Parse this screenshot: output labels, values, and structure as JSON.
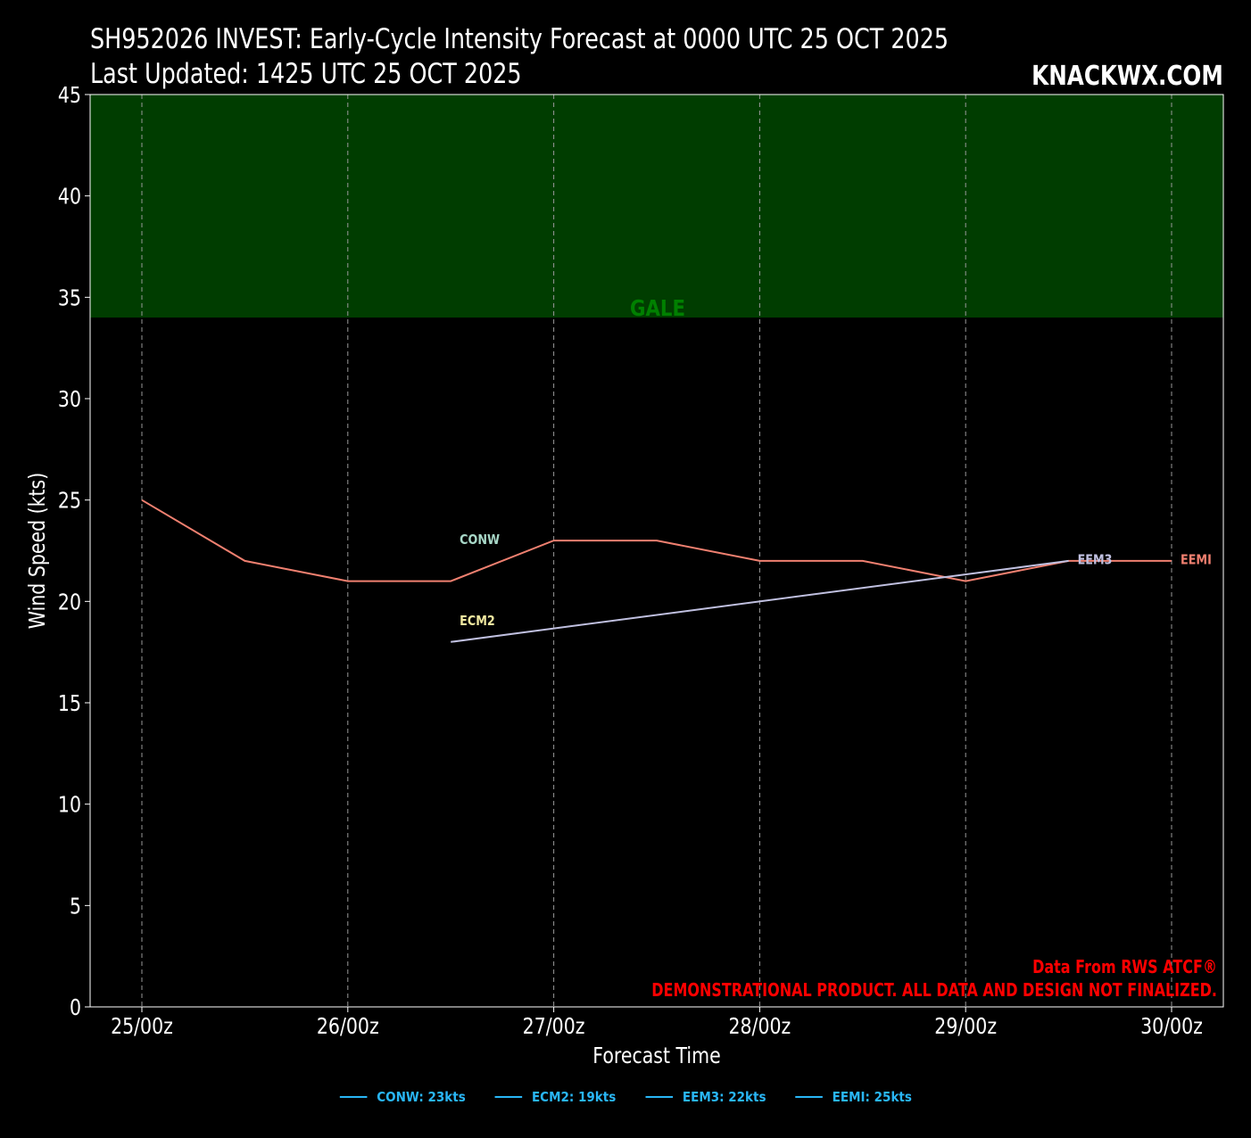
{
  "header": {
    "title_line1": "SH952026 INVEST: Early-Cycle Intensity Forecast at 0000 UTC 25 OCT 2025",
    "title_line2": "Last Updated: 1425 UTC 25 OCT 2025",
    "brand": "KNACKWX.COM"
  },
  "chart_data": {
    "type": "line",
    "xlabel": "Forecast Time",
    "ylabel": "Wind Speed (kts)",
    "ylim": [
      0,
      45
    ],
    "y_ticks": [
      0,
      5,
      10,
      15,
      20,
      25,
      30,
      35,
      40,
      45
    ],
    "x_tick_labels": [
      "25/00z",
      "26/00z",
      "27/00z",
      "28/00z",
      "29/00z",
      "30/00z"
    ],
    "grid": "vertical dashed",
    "bands": [
      {
        "label": "GALE",
        "from": 34,
        "to": 45,
        "color": "#003d00",
        "label_color": "#008000"
      }
    ],
    "series": [
      {
        "name": "CONW",
        "color": "#f08070",
        "label_color": "#a8d8c8",
        "x": [
          "25/00z",
          "25/12z",
          "26/00z",
          "26/12z",
          "27/00z",
          "27/12z",
          "28/00z",
          "28/12z",
          "29/00z",
          "29/12z",
          "30/00z"
        ],
        "values": [
          25,
          22,
          21,
          21,
          23,
          23,
          22,
          22,
          21,
          22,
          22
        ]
      },
      {
        "name": "ECM2",
        "color": "#c0c0e0",
        "label_color": "#f0e8a0",
        "x": [
          "26/12z",
          "29/12z"
        ],
        "values": [
          18,
          22
        ]
      }
    ],
    "line_labels": [
      {
        "text": "CONW",
        "x": "26/12z",
        "y": 23.1,
        "color": "#a8d8c8"
      },
      {
        "text": "ECM2",
        "x": "26/12z",
        "y": 19.1,
        "color": "#f0e8a0"
      },
      {
        "text": "EEM3",
        "x": "29/12z",
        "y": 22.1,
        "color": "#c0c0e0"
      },
      {
        "text": "EEMI",
        "x": "30/00z",
        "y": 22.1,
        "color": "#f08070"
      }
    ],
    "legend": [
      {
        "label": "CONW: 23kts"
      },
      {
        "label": "ECM2: 19kts"
      },
      {
        "label": "EEM3: 22kts"
      },
      {
        "label": "EEMI: 25kts"
      }
    ],
    "legend_color": "#29b6f6",
    "legend_placement": "bottom-center",
    "annotations": [
      {
        "text": "Data From RWS ATCF®",
        "color": "#ff0000"
      },
      {
        "text": "DEMONSTRATIONAL PRODUCT. ALL DATA AND DESIGN NOT FINALIZED.",
        "color": "#ff0000"
      }
    ]
  }
}
